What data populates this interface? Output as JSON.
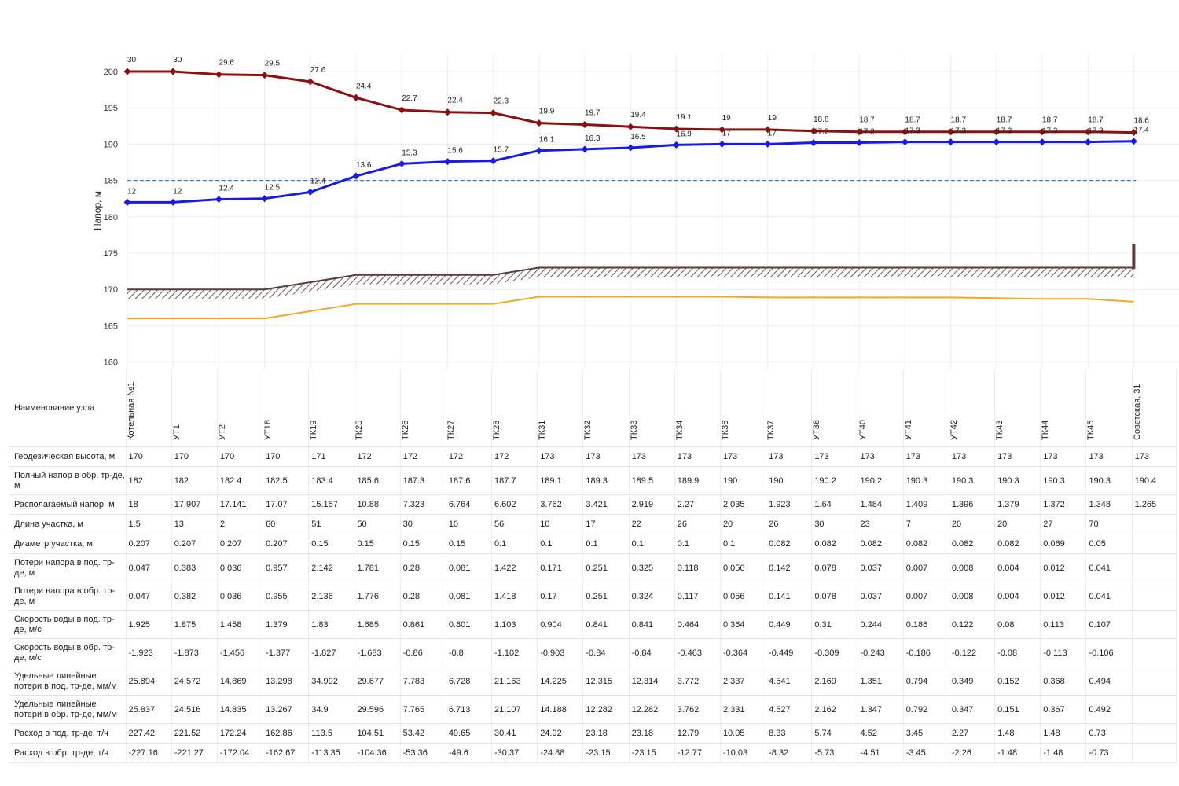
{
  "chart_data": {
    "type": "line",
    "ylabel": "Напор, м",
    "ylim": [
      160,
      200
    ],
    "yticks": [
      160,
      165,
      170,
      175,
      180,
      185,
      190,
      195,
      200
    ],
    "categories": [
      "Котельная №1",
      "УТ1",
      "УТ2",
      "УТ18",
      "ТК19",
      "ТК25",
      "ТК26",
      "ТК27",
      "ТК28",
      "ТК31",
      "ТК32",
      "ТК33",
      "ТК34",
      "ТК36",
      "ТК37",
      "УТ38",
      "УТ40",
      "УТ41",
      "УТ42",
      "ТК43",
      "ТК44",
      "ТК45",
      "Советская, 31"
    ],
    "reference_line": 185,
    "series": [
      {
        "key": "supply",
        "color": "#8b1010",
        "values": [
          200,
          200,
          199.6,
          199.5,
          198.6,
          196.4,
          194.7,
          194.4,
          194.3,
          192.9,
          192.7,
          192.4,
          192.1,
          192,
          192,
          191.8,
          191.7,
          191.7,
          191.7,
          191.7,
          191.7,
          191.7,
          191.6
        ],
        "labels": [
          "30",
          "30",
          "29.6",
          "29.5",
          "27.6",
          "24.4",
          "22.7",
          "22.4",
          "22.3",
          "19.9",
          "19.7",
          "19.4",
          "19.1",
          "19",
          "19",
          "18.8",
          "18.7",
          "18.7",
          "18.7",
          "18.7",
          "18.7",
          "18.7",
          "18.6"
        ]
      },
      {
        "key": "return",
        "color": "#1a1ae6",
        "values": [
          182,
          182,
          182.4,
          182.5,
          183.4,
          185.6,
          187.3,
          187.6,
          187.7,
          189.1,
          189.3,
          189.5,
          189.9,
          190,
          190,
          190.2,
          190.2,
          190.3,
          190.3,
          190.3,
          190.3,
          190.3,
          190.4
        ],
        "labels": [
          "12",
          "12",
          "12.4",
          "12.5",
          "12.4",
          "13.6",
          "15.3",
          "15.6",
          "15.7",
          "16.1",
          "16.3",
          "16.5",
          "16.9",
          "17",
          "17",
          "17.2",
          "17.2",
          "17.3",
          "17.3",
          "17.3",
          "17.3",
          "17.3",
          "17.4"
        ]
      },
      {
        "key": "ground",
        "color": "#5a3a3a",
        "values": [
          170,
          170,
          170,
          170,
          171,
          172,
          172,
          172,
          172,
          173,
          173,
          173,
          173,
          173,
          173,
          173,
          173,
          173,
          173,
          173,
          173,
          173,
          173
        ]
      },
      {
        "key": "static",
        "color": "#f5a623",
        "values": [
          166,
          166,
          166,
          166,
          167,
          168,
          168,
          168,
          168,
          169,
          169,
          169,
          169,
          169,
          168.9,
          168.9,
          168.9,
          168.9,
          168.9,
          168.8,
          168.7,
          168.7,
          168.3
        ]
      }
    ]
  },
  "table": {
    "name_header": "Наименование узла",
    "nodes": [
      "Котельная №1",
      "УТ1",
      "УТ2",
      "УТ18",
      "ТК19",
      "ТК25",
      "ТК26",
      "ТК27",
      "ТК28",
      "ТК31",
      "ТК32",
      "ТК33",
      "ТК34",
      "ТК36",
      "ТК37",
      "УТ38",
      "УТ40",
      "УТ41",
      "УТ42",
      "ТК43",
      "ТК44",
      "ТК45",
      "Советская, 31"
    ],
    "rows": [
      {
        "label": "Геодезическая высота, м",
        "values": [
          "170",
          "170",
          "170",
          "170",
          "171",
          "172",
          "172",
          "172",
          "172",
          "173",
          "173",
          "173",
          "173",
          "173",
          "173",
          "173",
          "173",
          "173",
          "173",
          "173",
          "173",
          "173",
          "173"
        ]
      },
      {
        "label": "Полный напор в обр. тр-де, м",
        "values": [
          "182",
          "182",
          "182.4",
          "182.5",
          "183.4",
          "185.6",
          "187.3",
          "187.6",
          "187.7",
          "189.1",
          "189.3",
          "189.5",
          "189.9",
          "190",
          "190",
          "190.2",
          "190.2",
          "190.3",
          "190.3",
          "190.3",
          "190.3",
          "190.3",
          "190.4"
        ]
      },
      {
        "label": "Располагаемый напор, м",
        "values": [
          "18",
          "17.907",
          "17.141",
          "17.07",
          "15.157",
          "10.88",
          "7.323",
          "6.764",
          "6.602",
          "3.762",
          "3.421",
          "2.919",
          "2.27",
          "2.035",
          "1.923",
          "1.64",
          "1.484",
          "1.409",
          "1.396",
          "1.379",
          "1.372",
          "1.348",
          "1.265"
        ]
      },
      {
        "label": "Длина участка, м",
        "values": [
          "1.5",
          "13",
          "2",
          "60",
          "51",
          "50",
          "30",
          "10",
          "56",
          "10",
          "17",
          "22",
          "26",
          "20",
          "26",
          "30",
          "23",
          "7",
          "20",
          "20",
          "27",
          "70",
          ""
        ]
      },
      {
        "label": "Диаметр участка, м",
        "values": [
          "0.207",
          "0.207",
          "0.207",
          "0.207",
          "0.15",
          "0.15",
          "0.15",
          "0.15",
          "0.1",
          "0.1",
          "0.1",
          "0.1",
          "0.1",
          "0.1",
          "0.082",
          "0.082",
          "0.082",
          "0.082",
          "0.082",
          "0.082",
          "0.069",
          "0.05",
          ""
        ]
      },
      {
        "label": "Потери напора в под. тр-де, м",
        "values": [
          "0.047",
          "0.383",
          "0.036",
          "0.957",
          "2.142",
          "1.781",
          "0.28",
          "0.081",
          "1.422",
          "0.171",
          "0.251",
          "0.325",
          "0.118",
          "0.056",
          "0.142",
          "0.078",
          "0.037",
          "0.007",
          "0.008",
          "0.004",
          "0.012",
          "0.041",
          ""
        ]
      },
      {
        "label": "Потери напора в обр. тр-де, м",
        "values": [
          "0.047",
          "0.382",
          "0.036",
          "0.955",
          "2.136",
          "1.776",
          "0.28",
          "0.081",
          "1.418",
          "0.17",
          "0.251",
          "0.324",
          "0.117",
          "0.056",
          "0.141",
          "0.078",
          "0.037",
          "0.007",
          "0.008",
          "0.004",
          "0.012",
          "0.041",
          ""
        ]
      },
      {
        "label": "Скорость воды в под. тр-де, м/с",
        "values": [
          "1.925",
          "1.875",
          "1.458",
          "1.379",
          "1.83",
          "1.685",
          "0.861",
          "0.801",
          "1.103",
          "0.904",
          "0.841",
          "0.841",
          "0.464",
          "0.364",
          "0.449",
          "0.31",
          "0.244",
          "0.186",
          "0.122",
          "0.08",
          "0.113",
          "0.107",
          ""
        ]
      },
      {
        "label": "Скорость воды в обр. тр-де, м/с",
        "values": [
          "-1.923",
          "-1.873",
          "-1.456",
          "-1.377",
          "-1.827",
          "-1.683",
          "-0.86",
          "-0.8",
          "-1.102",
          "-0.903",
          "-0.84",
          "-0.84",
          "-0.463",
          "-0.364",
          "-0.449",
          "-0.309",
          "-0.243",
          "-0.186",
          "-0.122",
          "-0.08",
          "-0.113",
          "-0.106",
          ""
        ]
      },
      {
        "label": "Удельные линейные потери в под. тр-де, мм/м",
        "values": [
          "25.894",
          "24.572",
          "14.869",
          "13.298",
          "34.992",
          "29.677",
          "7.783",
          "6.728",
          "21.163",
          "14.225",
          "12.315",
          "12.314",
          "3.772",
          "2.337",
          "4.541",
          "2.169",
          "1.351",
          "0.794",
          "0.349",
          "0.152",
          "0.368",
          "0.494",
          ""
        ]
      },
      {
        "label": "Удельные линейные потери в обр. тр-де, мм/м",
        "values": [
          "25.837",
          "24.516",
          "14.835",
          "13.267",
          "34.9",
          "29.596",
          "7.765",
          "6.713",
          "21.107",
          "14.188",
          "12.282",
          "12.282",
          "3.762",
          "2.331",
          "4.527",
          "2.162",
          "1.347",
          "0.792",
          "0.347",
          "0.151",
          "0.367",
          "0.492",
          ""
        ]
      },
      {
        "label": "Расход в под. тр-де, т/ч",
        "values": [
          "227.42",
          "221.52",
          "172.24",
          "162.86",
          "113.5",
          "104.51",
          "53.42",
          "49.65",
          "30.41",
          "24.92",
          "23.18",
          "23.18",
          "12.79",
          "10.05",
          "8.33",
          "5.74",
          "4.52",
          "3.45",
          "2.27",
          "1.48",
          "1.48",
          "0.73",
          ""
        ]
      },
      {
        "label": "Расход в обр. тр-де, т/ч",
        "values": [
          "-227.16",
          "-221.27",
          "-172.04",
          "-162.67",
          "-113.35",
          "-104.36",
          "-53.36",
          "-49.6",
          "-30.37",
          "-24.88",
          "-23.15",
          "-23.15",
          "-12.77",
          "-10.03",
          "-8.32",
          "-5.73",
          "-4.51",
          "-3.45",
          "-2.26",
          "-1.48",
          "-1.48",
          "-0.73",
          ""
        ]
      }
    ]
  }
}
